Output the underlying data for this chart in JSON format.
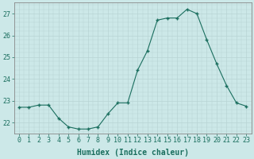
{
  "x": [
    0,
    1,
    2,
    3,
    4,
    5,
    6,
    7,
    8,
    9,
    10,
    11,
    12,
    13,
    14,
    15,
    16,
    17,
    18,
    19,
    20,
    21,
    22,
    23
  ],
  "y": [
    22.7,
    22.7,
    22.8,
    22.8,
    22.2,
    21.8,
    21.7,
    21.7,
    21.8,
    22.4,
    22.9,
    22.9,
    24.4,
    25.3,
    26.7,
    26.8,
    26.8,
    27.2,
    27.0,
    25.8,
    24.7,
    23.7,
    22.9,
    22.75
  ],
  "ylim": [
    21.5,
    27.5
  ],
  "yticks": [
    22,
    23,
    24,
    25,
    26,
    27
  ],
  "xticks": [
    0,
    1,
    2,
    3,
    4,
    5,
    6,
    7,
    8,
    9,
    10,
    11,
    12,
    13,
    14,
    15,
    16,
    17,
    18,
    19,
    20,
    21,
    22,
    23
  ],
  "xlabel": "Humidex (Indice chaleur)",
  "line_color": "#1a6e5e",
  "marker_color": "#1a6e5e",
  "bg_color": "#cce8e8",
  "grid_color": "#b8d4d4",
  "axis_color": "#888888",
  "tick_color": "#1a6e5e",
  "label_color": "#1a6e5e",
  "xlabel_fontsize": 7,
  "tick_fontsize": 6
}
